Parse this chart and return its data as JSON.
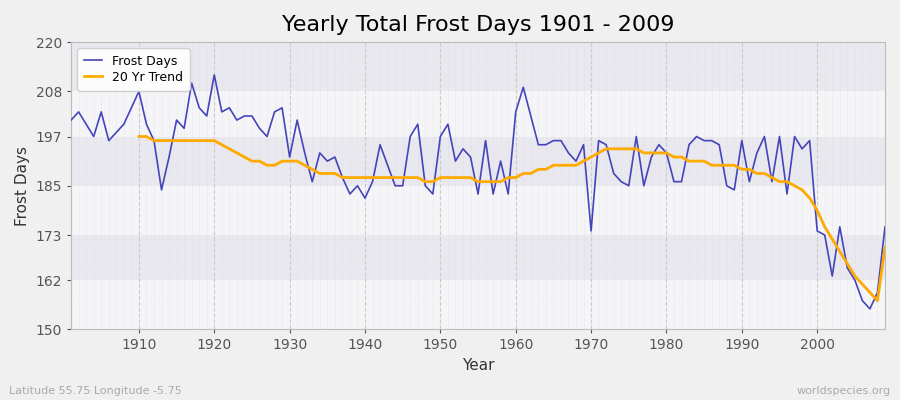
{
  "title": "Yearly Total Frost Days 1901 - 2009",
  "xlabel": "Year",
  "ylabel": "Frost Days",
  "subtitle_left": "Latitude 55.75 Longitude -5.75",
  "subtitle_right": "worldspecies.org",
  "years": [
    1901,
    1902,
    1903,
    1904,
    1905,
    1906,
    1907,
    1908,
    1909,
    1910,
    1911,
    1912,
    1913,
    1914,
    1915,
    1916,
    1917,
    1918,
    1919,
    1920,
    1921,
    1922,
    1923,
    1924,
    1925,
    1926,
    1927,
    1928,
    1929,
    1930,
    1931,
    1932,
    1933,
    1934,
    1935,
    1936,
    1937,
    1938,
    1939,
    1940,
    1941,
    1942,
    1943,
    1944,
    1945,
    1946,
    1947,
    1948,
    1949,
    1950,
    1951,
    1952,
    1953,
    1954,
    1955,
    1956,
    1957,
    1958,
    1959,
    1960,
    1961,
    1962,
    1963,
    1964,
    1965,
    1966,
    1967,
    1968,
    1969,
    1970,
    1971,
    1972,
    1973,
    1974,
    1975,
    1976,
    1977,
    1978,
    1979,
    1980,
    1981,
    1982,
    1983,
    1984,
    1985,
    1986,
    1987,
    1988,
    1989,
    1990,
    1991,
    1992,
    1993,
    1994,
    1995,
    1996,
    1997,
    1998,
    1999,
    2000,
    2001,
    2002,
    2003,
    2004,
    2005,
    2006,
    2007,
    2008,
    2009
  ],
  "frost_days": [
    201,
    203,
    200,
    197,
    203,
    196,
    198,
    200,
    204,
    208,
    200,
    196,
    184,
    192,
    201,
    199,
    210,
    204,
    202,
    212,
    203,
    204,
    201,
    202,
    202,
    199,
    197,
    203,
    204,
    192,
    201,
    193,
    186,
    193,
    191,
    192,
    187,
    183,
    185,
    182,
    186,
    195,
    190,
    185,
    185,
    197,
    200,
    185,
    183,
    197,
    200,
    191,
    194,
    192,
    183,
    196,
    183,
    191,
    183,
    203,
    209,
    202,
    195,
    195,
    196,
    196,
    193,
    191,
    195,
    174,
    196,
    195,
    188,
    186,
    185,
    197,
    185,
    192,
    195,
    193,
    186,
    186,
    195,
    197,
    196,
    196,
    195,
    185,
    184,
    196,
    186,
    193,
    197,
    186,
    197,
    183,
    197,
    194,
    196,
    174,
    173,
    163,
    175,
    165,
    162,
    157,
    155,
    159,
    175
  ],
  "trend_years": [
    1910,
    1911,
    1912,
    1913,
    1914,
    1915,
    1916,
    1917,
    1918,
    1919,
    1920,
    1921,
    1922,
    1923,
    1924,
    1925,
    1926,
    1927,
    1928,
    1929,
    1930,
    1931,
    1932,
    1933,
    1934,
    1935,
    1936,
    1937,
    1938,
    1939,
    1940,
    1941,
    1942,
    1943,
    1944,
    1945,
    1946,
    1947,
    1948,
    1949,
    1950,
    1951,
    1952,
    1953,
    1954,
    1955,
    1956,
    1957,
    1958,
    1959,
    1960,
    1961,
    1962,
    1963,
    1964,
    1965,
    1966,
    1967,
    1968,
    1969,
    1970,
    1971,
    1972,
    1973,
    1974,
    1975,
    1976,
    1977,
    1978,
    1979,
    1980,
    1981,
    1982,
    1983,
    1984,
    1985,
    1986,
    1987,
    1988,
    1989,
    1990,
    1991,
    1992,
    1993,
    1994,
    1995,
    1996,
    1997,
    1998,
    1999,
    2000,
    2001,
    2002,
    2003,
    2004,
    2005,
    2006,
    2007,
    2008,
    2009
  ],
  "trend_values": [
    197,
    197,
    196,
    196,
    196,
    196,
    196,
    196,
    196,
    196,
    196,
    195,
    194,
    193,
    192,
    191,
    191,
    190,
    190,
    191,
    191,
    191,
    190,
    189,
    188,
    188,
    188,
    187,
    187,
    187,
    187,
    187,
    187,
    187,
    187,
    187,
    187,
    187,
    186,
    186,
    187,
    187,
    187,
    187,
    187,
    186,
    186,
    186,
    186,
    187,
    187,
    188,
    188,
    189,
    189,
    190,
    190,
    190,
    190,
    191,
    192,
    193,
    194,
    194,
    194,
    194,
    194,
    193,
    193,
    193,
    193,
    192,
    192,
    191,
    191,
    191,
    190,
    190,
    190,
    190,
    189,
    189,
    188,
    188,
    187,
    186,
    186,
    185,
    184,
    182,
    179,
    175,
    172,
    169,
    166,
    163,
    161,
    159,
    157,
    170
  ],
  "frost_color": "#4444bb",
  "trend_color": "#ffaa00",
  "bg_color": "#f0f0f0",
  "plot_bg_color_light": "#f5f5f8",
  "plot_bg_color_dark": "#e8e8ee",
  "ylim": [
    150,
    220
  ],
  "yticks": [
    150,
    162,
    173,
    185,
    197,
    208,
    220
  ],
  "xlim": [
    1901,
    2009
  ],
  "band_edges": [
    150,
    162,
    173,
    185,
    197,
    208,
    220
  ],
  "title_fontsize": 16,
  "axis_label_fontsize": 11,
  "tick_fontsize": 10,
  "legend_fontsize": 9
}
